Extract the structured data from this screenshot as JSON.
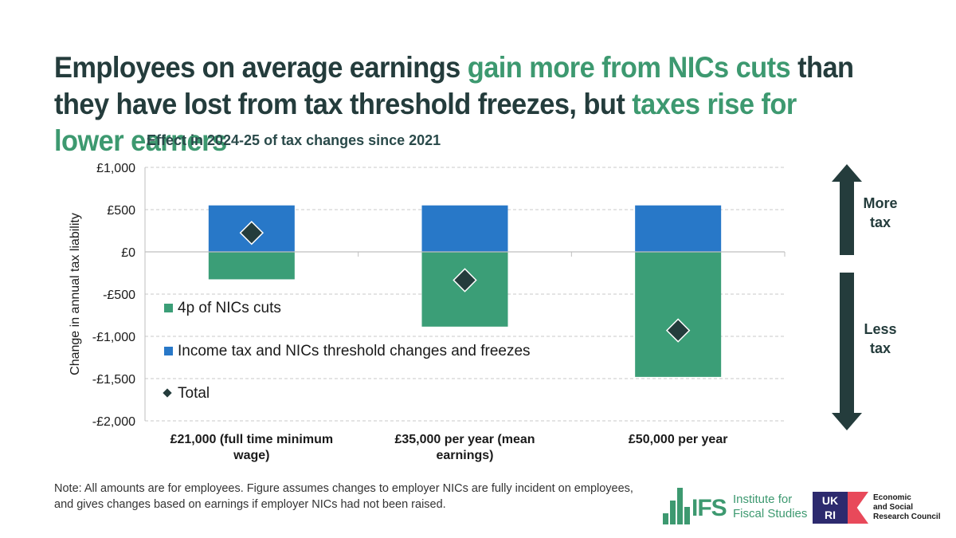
{
  "headline": {
    "part1": "Employees on average earnings ",
    "part2": "gain more from NICs cuts",
    "part3": " than they have lost from tax threshold freezes, but ",
    "part4": "taxes rise for lower earners"
  },
  "subtitle": "Effect in 2024-25 of tax changes since 2021",
  "colors": {
    "nics_cuts": "#3b9e77",
    "threshold": "#2878c8",
    "total": "#243c3c",
    "accent": "#3d9970"
  },
  "chart_data": {
    "type": "bar",
    "stacked": true,
    "ylabel": "Change in annual tax liability",
    "ylim": [
      -2000,
      1000
    ],
    "yticks": [
      1000,
      500,
      0,
      -500,
      -1000,
      -1500,
      -2000
    ],
    "ytick_labels": [
      "£1,000",
      "£500",
      "£0",
      "-£500",
      "-£1,000",
      "-£1,500",
      "-£2,000"
    ],
    "categories": [
      [
        "£21,000 (full time minimum",
        "wage)"
      ],
      [
        "£35,000 per year (mean",
        "earnings)"
      ],
      [
        "£50,000 per year"
      ]
    ],
    "series": [
      {
        "name": "4p of NICs cuts",
        "values": [
          -325,
          -885,
          -1480
        ]
      },
      {
        "name": "Income tax and NICs threshold changes and freezes",
        "values": [
          550,
          550,
          550
        ]
      }
    ],
    "total": {
      "name": "Total",
      "values": [
        225,
        -335,
        -930
      ]
    },
    "grid": true,
    "legend": "left"
  },
  "arrows": {
    "up": [
      "More",
      "tax"
    ],
    "down": [
      "Less",
      "tax"
    ]
  },
  "note": "Note: All amounts are for employees. Figure assumes changes to employer NICs are fully incident on employees, and gives changes based on earnings if employer NICs had not been raised.",
  "logos": {
    "ifs_short": "IFS",
    "ifs_name": [
      "Institute for",
      "Fiscal Studies"
    ],
    "ukri": [
      "UK",
      "RI"
    ],
    "esrc": [
      "Economic",
      "and Social",
      "Research Council"
    ]
  }
}
